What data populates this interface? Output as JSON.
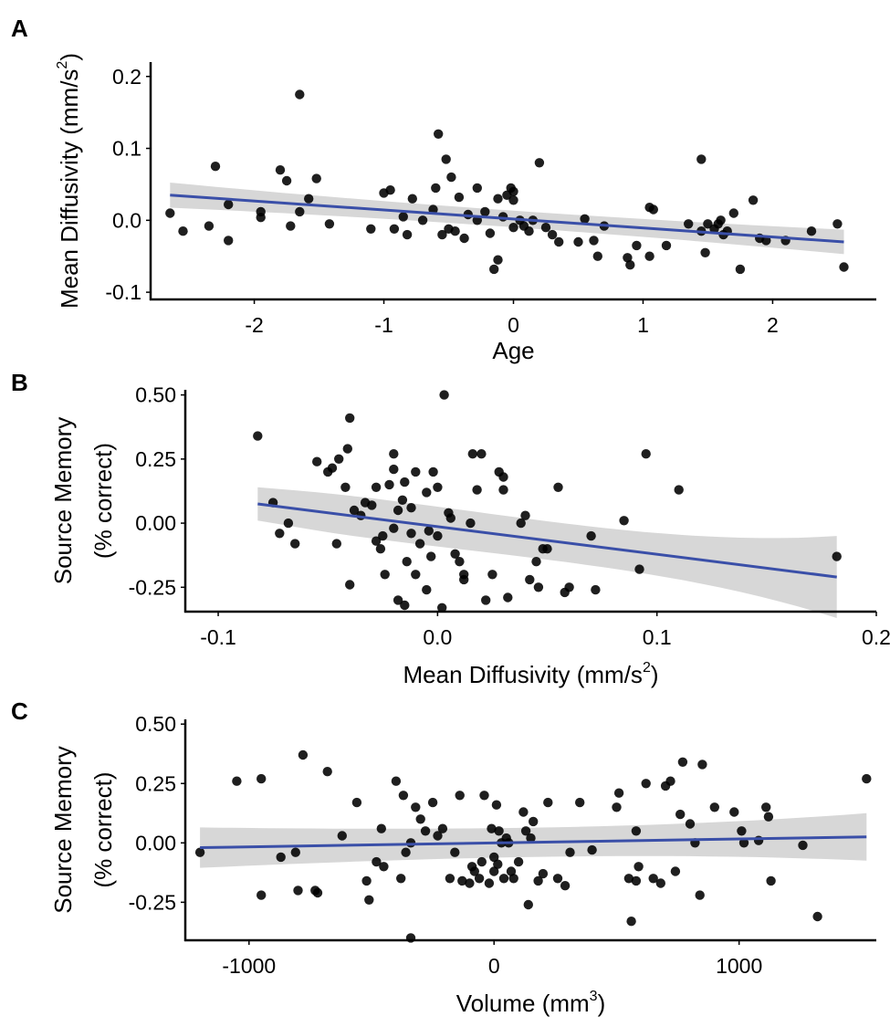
{
  "chart_data": [
    {
      "id": "A",
      "type": "scatter",
      "panel_label": "A",
      "xlabel": "Age",
      "ylabel": "Mean Diffusivity (mm/s",
      "ylabel_sup": "2",
      "ylabel_close": ")",
      "xlabel_sup": "",
      "xlabel_close": "",
      "xlim": [
        -2.8,
        2.8
      ],
      "ylim": [
        -0.11,
        0.22
      ],
      "xticks": [
        -2,
        -1,
        0,
        1,
        2
      ],
      "xtick_labels": [
        "-2",
        "-1",
        "0",
        "1",
        "2"
      ],
      "yticks": [
        -0.1,
        0.0,
        0.1,
        0.2
      ],
      "ytick_labels": [
        "-0.1",
        "0.0",
        "0.1",
        "0.2"
      ],
      "fit": {
        "x": [
          -2.65,
          2.55
        ],
        "y": [
          0.035,
          -0.03
        ],
        "ci_low": [
          0.018,
          -0.047
        ],
        "ci_high": [
          0.053,
          -0.013
        ],
        "ci_mid": [
          0.005,
          0.018
        ]
      },
      "points": [
        [
          -2.65,
          0.01
        ],
        [
          -2.55,
          -0.015
        ],
        [
          -2.35,
          -0.008
        ],
        [
          -2.3,
          0.075
        ],
        [
          -2.2,
          -0.028
        ],
        [
          -2.2,
          0.022
        ],
        [
          -1.95,
          0.012
        ],
        [
          -1.95,
          0.004
        ],
        [
          -1.8,
          0.07
        ],
        [
          -1.75,
          0.055
        ],
        [
          -1.72,
          -0.008
        ],
        [
          -1.65,
          0.012
        ],
        [
          -1.65,
          0.175
        ],
        [
          -1.58,
          0.03
        ],
        [
          -1.52,
          0.058
        ],
        [
          -1.42,
          -0.005
        ],
        [
          -1.1,
          -0.012
        ],
        [
          -1.0,
          0.038
        ],
        [
          -0.95,
          0.042
        ],
        [
          -0.92,
          -0.012
        ],
        [
          -0.85,
          0.005
        ],
        [
          -0.82,
          -0.02
        ],
        [
          -0.78,
          0.03
        ],
        [
          -0.7,
          0.0
        ],
        [
          -0.62,
          0.015
        ],
        [
          -0.6,
          0.045
        ],
        [
          -0.58,
          0.12
        ],
        [
          -0.55,
          -0.02
        ],
        [
          -0.52,
          0.085
        ],
        [
          -0.5,
          -0.012
        ],
        [
          -0.48,
          0.06
        ],
        [
          -0.45,
          -0.015
        ],
        [
          -0.42,
          0.032
        ],
        [
          -0.38,
          -0.025
        ],
        [
          -0.35,
          0.008
        ],
        [
          -0.28,
          0.0
        ],
        [
          -0.28,
          0.045
        ],
        [
          -0.22,
          0.012
        ],
        [
          -0.18,
          -0.018
        ],
        [
          -0.15,
          -0.068
        ],
        [
          -0.12,
          -0.055
        ],
        [
          -0.12,
          0.03
        ],
        [
          -0.08,
          0.005
        ],
        [
          -0.05,
          0.035
        ],
        [
          -0.02,
          0.045
        ],
        [
          0.0,
          0.04
        ],
        [
          0.0,
          0.028
        ],
        [
          0.0,
          -0.01
        ],
        [
          0.05,
          0.0
        ],
        [
          0.08,
          -0.008
        ],
        [
          0.12,
          -0.015
        ],
        [
          0.15,
          0.0
        ],
        [
          0.2,
          0.08
        ],
        [
          0.25,
          -0.01
        ],
        [
          0.3,
          -0.02
        ],
        [
          0.35,
          -0.03
        ],
        [
          0.5,
          -0.03
        ],
        [
          0.55,
          0.002
        ],
        [
          0.62,
          -0.028
        ],
        [
          0.65,
          -0.05
        ],
        [
          0.7,
          -0.008
        ],
        [
          0.88,
          -0.052
        ],
        [
          0.9,
          -0.062
        ],
        [
          0.95,
          -0.035
        ],
        [
          1.05,
          -0.05
        ],
        [
          1.05,
          0.018
        ],
        [
          1.08,
          0.015
        ],
        [
          1.18,
          -0.035
        ],
        [
          1.35,
          -0.005
        ],
        [
          1.45,
          0.085
        ],
        [
          1.45,
          -0.015
        ],
        [
          1.48,
          -0.045
        ],
        [
          1.5,
          -0.005
        ],
        [
          1.55,
          -0.012
        ],
        [
          1.58,
          -0.005
        ],
        [
          1.6,
          0.0
        ],
        [
          1.62,
          -0.02
        ],
        [
          1.65,
          -0.015
        ],
        [
          1.7,
          0.01
        ],
        [
          1.75,
          -0.068
        ],
        [
          1.85,
          0.028
        ],
        [
          1.9,
          -0.025
        ],
        [
          1.95,
          -0.028
        ],
        [
          2.1,
          -0.028
        ],
        [
          2.3,
          -0.015
        ],
        [
          2.5,
          -0.005
        ],
        [
          2.55,
          -0.065
        ]
      ]
    },
    {
      "id": "B",
      "type": "scatter",
      "panel_label": "B",
      "xlabel": "Mean Diffusivity (mm/s",
      "xlabel_sup": "2",
      "xlabel_close": ")",
      "ylabel": "Source Memory",
      "ylabel2": "(% correct)",
      "xlim": [
        -0.115,
        0.2
      ],
      "ylim": [
        -0.345,
        0.52
      ],
      "xticks": [
        -0.1,
        0.0,
        0.1,
        0.2
      ],
      "xtick_labels": [
        "-0.1",
        "0.0",
        "0.1",
        "0.2"
      ],
      "yticks": [
        -0.25,
        0.0,
        0.25,
        0.5
      ],
      "ytick_labels": [
        "-0.25",
        "0.00",
        "0.25",
        "0.50"
      ],
      "fit": {
        "x": [
          -0.082,
          0.182
        ],
        "y": [
          0.075,
          -0.21
        ],
        "ci_low": [
          0.01,
          -0.37
        ],
        "ci_high": [
          0.14,
          -0.05
        ],
        "ci_mid": [
          -0.02,
          -0.02
        ]
      },
      "points": [
        [
          -0.082,
          0.34
        ],
        [
          -0.075,
          0.08
        ],
        [
          -0.072,
          -0.04
        ],
        [
          -0.068,
          0.0
        ],
        [
          -0.065,
          -0.08
        ],
        [
          -0.055,
          0.24
        ],
        [
          -0.05,
          0.2
        ],
        [
          -0.048,
          0.215
        ],
        [
          -0.046,
          -0.08
        ],
        [
          -0.045,
          0.25
        ],
        [
          -0.042,
          0.14
        ],
        [
          -0.041,
          0.29
        ],
        [
          -0.04,
          -0.24
        ],
        [
          -0.04,
          0.41
        ],
        [
          -0.038,
          0.05
        ],
        [
          -0.035,
          0.03
        ],
        [
          -0.033,
          0.08
        ],
        [
          -0.03,
          0.07
        ],
        [
          -0.028,
          -0.07
        ],
        [
          -0.028,
          0.14
        ],
        [
          -0.026,
          -0.1
        ],
        [
          -0.025,
          -0.05
        ],
        [
          -0.024,
          -0.2
        ],
        [
          -0.022,
          0.15
        ],
        [
          -0.02,
          -0.02
        ],
        [
          -0.02,
          0.27
        ],
        [
          -0.02,
          0.21
        ],
        [
          -0.018,
          0.05
        ],
        [
          -0.018,
          -0.3
        ],
        [
          -0.016,
          0.09
        ],
        [
          -0.015,
          -0.32
        ],
        [
          -0.015,
          0.16
        ],
        [
          -0.014,
          -0.15
        ],
        [
          -0.012,
          -0.04
        ],
        [
          -0.012,
          0.06
        ],
        [
          -0.01,
          0.2
        ],
        [
          -0.01,
          -0.2
        ],
        [
          -0.008,
          -0.08
        ],
        [
          -0.005,
          0.12
        ],
        [
          -0.005,
          -0.26
        ],
        [
          -0.004,
          -0.03
        ],
        [
          -0.003,
          -0.13
        ],
        [
          -0.002,
          0.2
        ],
        [
          0.0,
          0.14
        ],
        [
          0.0,
          -0.05
        ],
        [
          0.002,
          -0.33
        ],
        [
          0.003,
          0.5
        ],
        [
          0.005,
          0.04
        ],
        [
          0.006,
          0.02
        ],
        [
          0.008,
          -0.12
        ],
        [
          0.01,
          -0.15
        ],
        [
          0.012,
          -0.2
        ],
        [
          0.012,
          -0.22
        ],
        [
          0.015,
          0.0
        ],
        [
          0.016,
          0.27
        ],
        [
          0.018,
          0.13
        ],
        [
          0.02,
          0.27
        ],
        [
          0.022,
          -0.3
        ],
        [
          0.025,
          -0.2
        ],
        [
          0.028,
          0.2
        ],
        [
          0.03,
          0.13
        ],
        [
          0.03,
          0.18
        ],
        [
          0.032,
          -0.29
        ],
        [
          0.038,
          0.0
        ],
        [
          0.04,
          0.03
        ],
        [
          0.042,
          -0.22
        ],
        [
          0.045,
          -0.15
        ],
        [
          0.046,
          -0.25
        ],
        [
          0.048,
          -0.1
        ],
        [
          0.05,
          -0.1
        ],
        [
          0.055,
          0.14
        ],
        [
          0.058,
          -0.27
        ],
        [
          0.06,
          -0.25
        ],
        [
          0.07,
          -0.05
        ],
        [
          0.072,
          -0.26
        ],
        [
          0.085,
          0.01
        ],
        [
          0.092,
          -0.18
        ],
        [
          0.095,
          0.27
        ],
        [
          0.11,
          0.13
        ],
        [
          0.182,
          -0.13
        ]
      ]
    },
    {
      "id": "C",
      "type": "scatter",
      "panel_label": "C",
      "xlabel": "Volume (mm",
      "xlabel_sup": "3",
      "xlabel_close": ")",
      "ylabel": "Source Memory",
      "ylabel2": "(% correct)",
      "xlim": [
        -1260,
        1560
      ],
      "ylim": [
        -0.41,
        0.52
      ],
      "xticks": [
        -1000,
        0,
        1000
      ],
      "xtick_labels": [
        "-1000",
        "0",
        "1000"
      ],
      "yticks": [
        -0.25,
        0.0,
        0.25,
        0.5
      ],
      "ytick_labels": [
        "-0.25",
        "0.00",
        "0.25",
        "0.50"
      ],
      "fit": {
        "x": [
          -1200,
          1520
        ],
        "y": [
          -0.02,
          0.025
        ],
        "ci_low": [
          -0.1,
          -0.07
        ],
        "ci_high": [
          0.07,
          0.13
        ],
        "ci_mid": [
          -0.005,
          -0.005
        ]
      },
      "points": [
        [
          -1200,
          -0.04
        ],
        [
          -1050,
          0.26
        ],
        [
          -950,
          0.27
        ],
        [
          -950,
          -0.22
        ],
        [
          -870,
          -0.06
        ],
        [
          -810,
          -0.04
        ],
        [
          -800,
          -0.2
        ],
        [
          -780,
          0.37
        ],
        [
          -730,
          -0.2
        ],
        [
          -720,
          -0.21
        ],
        [
          -680,
          0.3
        ],
        [
          -620,
          0.03
        ],
        [
          -560,
          0.17
        ],
        [
          -520,
          -0.16
        ],
        [
          -510,
          -0.24
        ],
        [
          -480,
          -0.08
        ],
        [
          -460,
          0.06
        ],
        [
          -450,
          -0.1
        ],
        [
          -400,
          0.26
        ],
        [
          -380,
          -0.15
        ],
        [
          -370,
          0.2
        ],
        [
          -360,
          -0.04
        ],
        [
          -340,
          0.0
        ],
        [
          -340,
          -0.4
        ],
        [
          -320,
          0.15
        ],
        [
          -300,
          0.1
        ],
        [
          -280,
          0.05
        ],
        [
          -250,
          0.17
        ],
        [
          -230,
          0.03
        ],
        [
          -210,
          0.06
        ],
        [
          -180,
          -0.15
        ],
        [
          -160,
          -0.04
        ],
        [
          -140,
          0.2
        ],
        [
          -130,
          -0.16
        ],
        [
          -100,
          -0.17
        ],
        [
          -90,
          -0.1
        ],
        [
          -80,
          -0.12
        ],
        [
          -60,
          -0.15
        ],
        [
          -50,
          -0.08
        ],
        [
          -40,
          0.2
        ],
        [
          -20,
          -0.17
        ],
        [
          -10,
          0.06
        ],
        [
          0,
          -0.12
        ],
        [
          0,
          -0.06
        ],
        [
          10,
          0.16
        ],
        [
          15,
          -0.09
        ],
        [
          20,
          0.05
        ],
        [
          30,
          0.0
        ],
        [
          40,
          -0.15
        ],
        [
          50,
          0.02
        ],
        [
          60,
          0.0
        ],
        [
          70,
          -0.12
        ],
        [
          80,
          -0.15
        ],
        [
          100,
          -0.08
        ],
        [
          120,
          0.13
        ],
        [
          130,
          0.05
        ],
        [
          140,
          -0.26
        ],
        [
          150,
          0.02
        ],
        [
          160,
          0.09
        ],
        [
          180,
          -0.16
        ],
        [
          200,
          -0.13
        ],
        [
          220,
          0.17
        ],
        [
          260,
          -0.15
        ],
        [
          290,
          -0.18
        ],
        [
          310,
          -0.04
        ],
        [
          350,
          0.17
        ],
        [
          400,
          -0.03
        ],
        [
          500,
          0.15
        ],
        [
          510,
          0.21
        ],
        [
          550,
          -0.15
        ],
        [
          560,
          -0.33
        ],
        [
          580,
          -0.16
        ],
        [
          580,
          0.05
        ],
        [
          590,
          -0.1
        ],
        [
          620,
          0.25
        ],
        [
          650,
          -0.15
        ],
        [
          680,
          -0.17
        ],
        [
          700,
          0.24
        ],
        [
          720,
          0.26
        ],
        [
          740,
          -0.12
        ],
        [
          760,
          0.12
        ],
        [
          770,
          0.34
        ],
        [
          800,
          0.08
        ],
        [
          820,
          0.0
        ],
        [
          840,
          -0.22
        ],
        [
          850,
          0.33
        ],
        [
          900,
          0.15
        ],
        [
          980,
          0.13
        ],
        [
          1010,
          0.05
        ],
        [
          1020,
          0.0
        ],
        [
          1080,
          0.01
        ],
        [
          1110,
          0.15
        ],
        [
          1120,
          0.11
        ],
        [
          1130,
          -0.16
        ],
        [
          1260,
          -0.01
        ],
        [
          1320,
          -0.31
        ],
        [
          1520,
          0.27
        ]
      ]
    }
  ]
}
